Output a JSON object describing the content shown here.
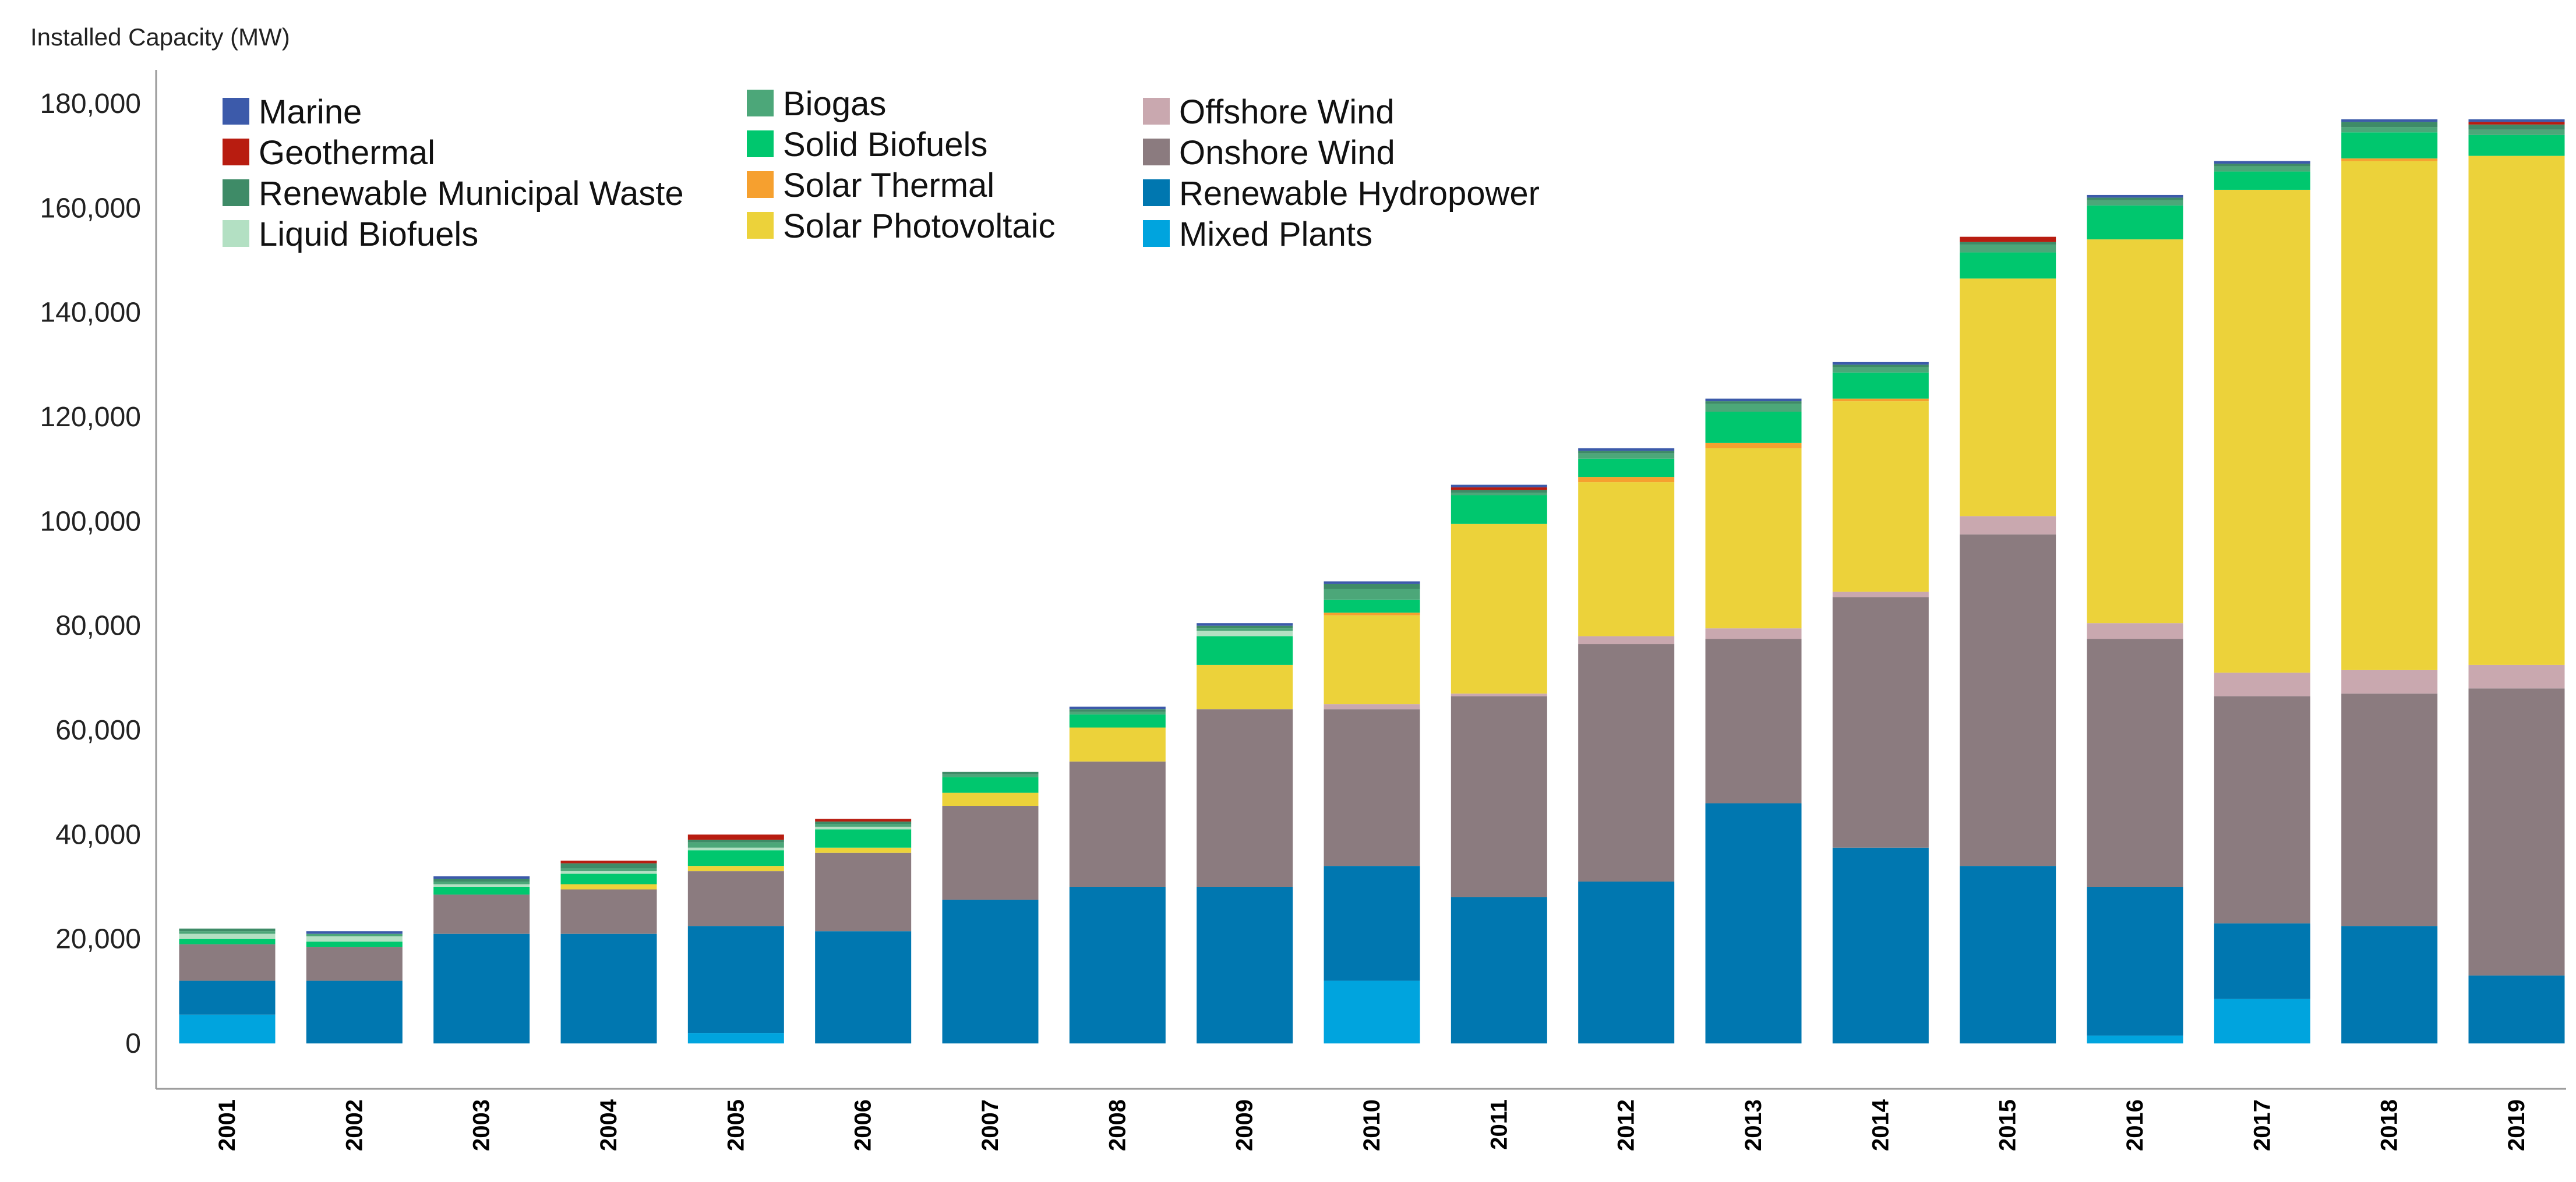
{
  "chart_data": {
    "type": "bar",
    "stacked": true,
    "ylabel": "Installed Capacity (MW)",
    "ylim": [
      0,
      180000
    ],
    "y_ticks": [
      0,
      20000,
      40000,
      60000,
      80000,
      100000,
      120000,
      140000,
      160000,
      180000
    ],
    "y_tick_labels": [
      "0",
      "20,000",
      "40,000",
      "60,000",
      "80,000",
      "100,000",
      "120,000",
      "140,000",
      "160,000",
      "180,000"
    ],
    "grid": false,
    "legend_position": "top-left",
    "categories": [
      "2001",
      "2002",
      "2003",
      "2004",
      "2005",
      "2006",
      "2007",
      "2008",
      "2009",
      "2010",
      "2011",
      "2012",
      "2013",
      "2014",
      "2015",
      "2016",
      "2017",
      "2018",
      "2019"
    ],
    "series": [
      {
        "name": "Mixed Plants",
        "color": "#00a4de",
        "values": [
          5500,
          0,
          0,
          0,
          2000,
          0,
          0,
          0,
          0,
          12000,
          0,
          0,
          0,
          0,
          0,
          1500,
          8500,
          0,
          0
        ]
      },
      {
        "name": "Renewable Hydropower",
        "color": "#0077b0",
        "values": [
          6500,
          12000,
          21000,
          21000,
          20500,
          21500,
          27500,
          30000,
          30000,
          22000,
          28000,
          31000,
          46000,
          37500,
          34000,
          28500,
          14500,
          22500,
          13000
        ]
      },
      {
        "name": "Onshore Wind",
        "color": "#8b7b7f",
        "values": [
          7000,
          6500,
          7500,
          8500,
          10500,
          15000,
          18000,
          24000,
          34000,
          30000,
          38500,
          45500,
          31500,
          48000,
          63500,
          47500,
          43500,
          44500,
          55000
        ]
      },
      {
        "name": "Offshore Wind",
        "color": "#c9a8af",
        "values": [
          0,
          0,
          0,
          0,
          0,
          0,
          0,
          0,
          0,
          1000,
          500,
          1500,
          2000,
          1000,
          3500,
          3000,
          4500,
          4500,
          4500
        ]
      },
      {
        "name": "Solar Photovoltaic",
        "color": "#ecd23a",
        "values": [
          0,
          0,
          0,
          1000,
          1000,
          1000,
          2500,
          6500,
          8500,
          17000,
          32500,
          29500,
          34500,
          36500,
          45500,
          73500,
          92500,
          97500,
          97500
        ]
      },
      {
        "name": "Solar Thermal",
        "color": "#f6a02f",
        "values": [
          0,
          0,
          0,
          0,
          0,
          0,
          0,
          0,
          0,
          500,
          0,
          1000,
          1000,
          500,
          0,
          0,
          0,
          500,
          0
        ]
      },
      {
        "name": "Solid Biofuels",
        "color": "#00c76e",
        "values": [
          1000,
          1000,
          1500,
          2000,
          3000,
          3500,
          3000,
          2500,
          5500,
          2500,
          5500,
          3500,
          6000,
          5000,
          5000,
          6500,
          3500,
          5000,
          4000
        ]
      },
      {
        "name": "Liquid Biofuels",
        "color": "#b3e0c3",
        "values": [
          1000,
          1000,
          500,
          500,
          500,
          500,
          0,
          0,
          1000,
          0,
          0,
          0,
          0,
          0,
          0,
          0,
          0,
          0,
          0
        ]
      },
      {
        "name": "Biogas",
        "color": "#4ca779",
        "values": [
          500,
          500,
          500,
          500,
          1000,
          500,
          500,
          500,
          500,
          2000,
          500,
          1000,
          1500,
          1000,
          1500,
          1000,
          1000,
          1000,
          1000
        ]
      },
      {
        "name": "Renewable Municipal Waste",
        "color": "#3e8b67",
        "values": [
          500,
          0,
          500,
          1000,
          500,
          500,
          500,
          500,
          500,
          1000,
          500,
          500,
          500,
          500,
          500,
          500,
          500,
          1000,
          1000
        ]
      },
      {
        "name": "Geothermal",
        "color": "#b81c10",
        "values": [
          0,
          0,
          0,
          500,
          1000,
          500,
          0,
          0,
          0,
          0,
          500,
          0,
          0,
          0,
          1000,
          0,
          0,
          0,
          500
        ]
      },
      {
        "name": "Marine",
        "color": "#3c5aaa",
        "values": [
          0,
          500,
          500,
          0,
          0,
          0,
          0,
          500,
          500,
          500,
          500,
          500,
          500,
          500,
          0,
          500,
          500,
          500,
          500
        ]
      }
    ],
    "legend": [
      [
        {
          "name": "Marine",
          "color": "#3c5aaa"
        },
        {
          "name": "Geothermal",
          "color": "#b81c10"
        },
        {
          "name": "Renewable Municipal Waste",
          "color": "#3e8b67"
        },
        {
          "name": "Liquid Biofuels",
          "color": "#b3e0c3"
        }
      ],
      [
        {
          "name": "Biogas",
          "color": "#4ca779"
        },
        {
          "name": "Solid Biofuels",
          "color": "#00c76e"
        },
        {
          "name": "Solar Thermal",
          "color": "#f6a02f"
        },
        {
          "name": "Solar Photovoltaic",
          "color": "#ecd23a"
        }
      ],
      [
        {
          "name": "Offshore Wind",
          "color": "#c9a8af"
        },
        {
          "name": "Onshore Wind",
          "color": "#8b7b7f"
        },
        {
          "name": "Renewable Hydropower",
          "color": "#0077b0"
        },
        {
          "name": "Mixed Plants",
          "color": "#00a4de"
        }
      ]
    ]
  }
}
